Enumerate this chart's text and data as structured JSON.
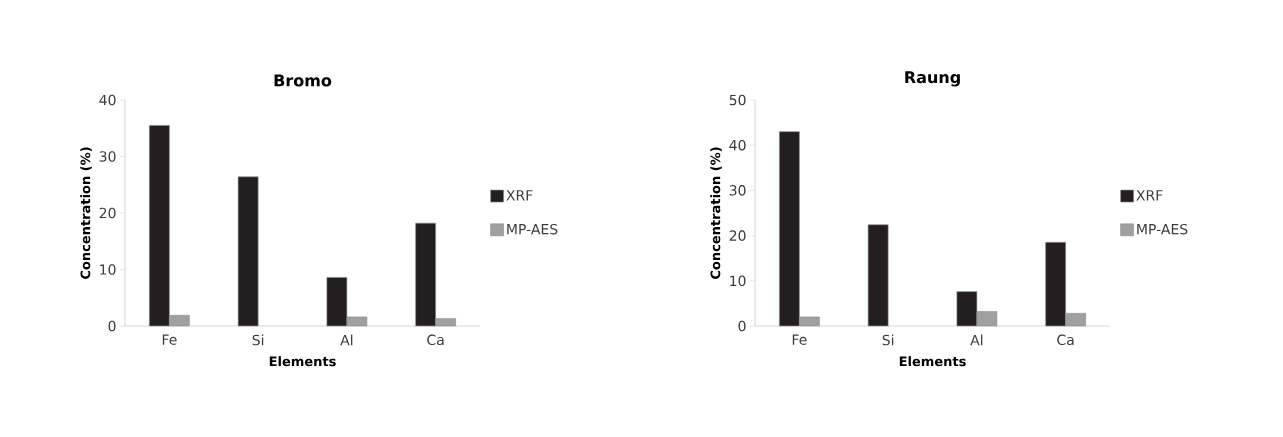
{
  "chart_data": [
    {
      "type": "bar",
      "title": "Bromo",
      "xlabel": "Elements",
      "ylabel": "Concentration (%)",
      "categories": [
        "Fe",
        "Si",
        "Al",
        "Ca"
      ],
      "ylim": [
        0,
        40
      ],
      "yticks": [
        0,
        10,
        20,
        30,
        40
      ],
      "legend": "right",
      "series": [
        {
          "name": "XRF",
          "color": "#231f20",
          "values": [
            35.5,
            26.4,
            8.6,
            18.2
          ]
        },
        {
          "name": "MP-AES",
          "color": "#a0a0a0",
          "values": [
            1.9,
            null,
            1.6,
            1.3
          ]
        }
      ]
    },
    {
      "type": "bar",
      "title": "Raung",
      "xlabel": "Elements",
      "ylabel": "Concentration (%)",
      "categories": [
        "Fe",
        "Si",
        "Al",
        "Ca"
      ],
      "ylim": [
        0,
        50
      ],
      "yticks": [
        0,
        10,
        20,
        30,
        40,
        50
      ],
      "legend": "right",
      "series": [
        {
          "name": "XRF",
          "color": "#231f20",
          "values": [
            43.0,
            22.4,
            7.6,
            18.5
          ]
        },
        {
          "name": "MP-AES",
          "color": "#a0a0a0",
          "values": [
            2.0,
            null,
            3.2,
            2.8
          ]
        }
      ]
    }
  ]
}
